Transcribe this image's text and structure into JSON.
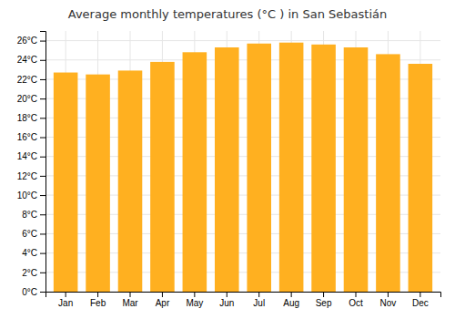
{
  "chart_data": {
    "type": "bar",
    "title": "Average monthly temperatures (°C ) in San Sebastián",
    "categories": [
      "Jan",
      "Feb",
      "Mar",
      "Apr",
      "May",
      "Jun",
      "Jul",
      "Aug",
      "Sep",
      "Oct",
      "Nov",
      "Dec"
    ],
    "values": [
      22.7,
      22.5,
      22.9,
      23.8,
      24.8,
      25.3,
      25.7,
      25.8,
      25.6,
      25.3,
      24.6,
      23.6
    ],
    "color": "#FFB020",
    "ylim": [
      0,
      27
    ],
    "yticks": [
      {
        "value": 0,
        "label": "0°C"
      },
      {
        "value": 2,
        "label": "2°C"
      },
      {
        "value": 4,
        "label": "4°C"
      },
      {
        "value": 6,
        "label": "6°C"
      },
      {
        "value": 8,
        "label": "8°C"
      },
      {
        "value": 10,
        "label": "10°C"
      },
      {
        "value": 12,
        "label": "12°C"
      },
      {
        "value": 14,
        "label": "14°C"
      },
      {
        "value": 16,
        "label": "16°C"
      },
      {
        "value": 18,
        "label": "18°C"
      },
      {
        "value": 20,
        "label": "20°C"
      },
      {
        "value": 22,
        "label": "22°C"
      },
      {
        "value": 24,
        "label": "24°C"
      },
      {
        "value": 26,
        "label": "26°C"
      }
    ],
    "grid": true
  }
}
